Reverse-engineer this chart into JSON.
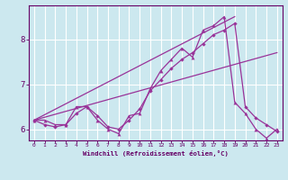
{
  "xlabel": "Windchill (Refroidissement éolien,°C)",
  "xlim": [
    -0.5,
    23.5
  ],
  "ylim": [
    5.75,
    8.75
  ],
  "yticks": [
    6,
    7,
    8
  ],
  "xticks": [
    0,
    1,
    2,
    3,
    4,
    5,
    6,
    7,
    8,
    9,
    10,
    11,
    12,
    13,
    14,
    15,
    16,
    17,
    18,
    19,
    20,
    21,
    22,
    23
  ],
  "background_color": "#cce8ef",
  "grid_color": "#ffffff",
  "line_color": "#993399",
  "series1_x": [
    0,
    1,
    2,
    3,
    4,
    5,
    6,
    7,
    8,
    9,
    10,
    11,
    12,
    13,
    14,
    15,
    16,
    17,
    18,
    19,
    20,
    21,
    22,
    23
  ],
  "series1_y": [
    6.2,
    6.2,
    6.1,
    6.1,
    6.5,
    6.5,
    6.2,
    6.0,
    5.9,
    6.3,
    6.35,
    6.9,
    7.3,
    7.55,
    7.8,
    7.6,
    8.2,
    8.3,
    8.5,
    6.6,
    6.35,
    6.0,
    5.8,
    6.0
  ],
  "series2_x": [
    0,
    1,
    2,
    3,
    4,
    5,
    6,
    7,
    8,
    9,
    10,
    11,
    12,
    13,
    14,
    15,
    16,
    17,
    18,
    19,
    20,
    21,
    22,
    23
  ],
  "series2_y": [
    6.2,
    6.1,
    6.05,
    6.1,
    6.35,
    6.5,
    6.3,
    6.05,
    6.0,
    6.2,
    6.45,
    6.85,
    7.1,
    7.35,
    7.55,
    7.7,
    7.9,
    8.1,
    8.2,
    8.35,
    6.5,
    6.25,
    6.1,
    5.95
  ],
  "series3_x": [
    0,
    19
  ],
  "series3_y": [
    6.2,
    8.5
  ],
  "series4_x": [
    0,
    23
  ],
  "series4_y": [
    6.2,
    7.7
  ]
}
